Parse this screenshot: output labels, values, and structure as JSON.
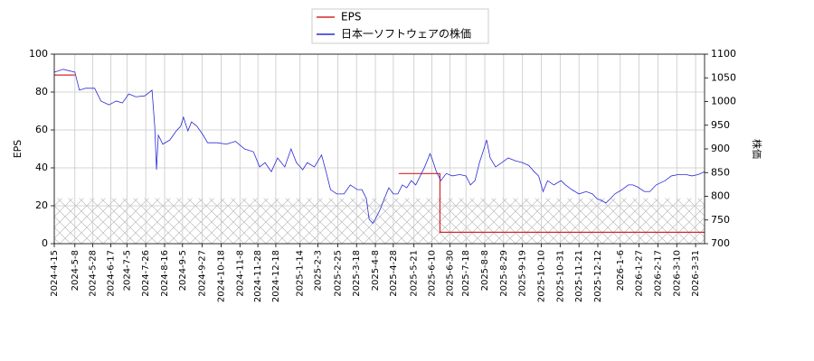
{
  "chart_data": {
    "type": "line",
    "y_label": "EPS",
    "y2_label": "株価",
    "xlim": [
      "2024-4-15",
      "2026-4-10"
    ],
    "xticks": [
      "2024-4-15",
      "2024-5-8",
      "2024-5-28",
      "2024-6-17",
      "2024-7-5",
      "2024-7-26",
      "2024-8-16",
      "2024-9-5",
      "2024-9-27",
      "2024-10-18",
      "2024-11-8",
      "2024-11-28",
      "2024-12-18",
      "2025-1-14",
      "2025-2-3",
      "2025-2-25",
      "2025-3-18",
      "2025-4-8",
      "2025-4-28",
      "2025-5-21",
      "2025-6-10",
      "2025-6-30",
      "2025-7-18",
      "2025-8-8",
      "2025-8-29",
      "2025-9-19",
      "2025-10-10",
      "2025-10-31",
      "2025-11-21",
      "2025-12-12",
      "2026-1-6",
      "2026-1-27",
      "2026-2-17",
      "2026-3-10",
      "2026-3-31"
    ],
    "ylim": [
      0,
      100
    ],
    "yticks": [
      0,
      20,
      40,
      60,
      80,
      100
    ],
    "y2lim": [
      700,
      1100
    ],
    "y2ticks": [
      700,
      750,
      800,
      850,
      900,
      950,
      1000,
      1050,
      1100
    ],
    "grid": true,
    "legend": "top",
    "shaded_range": [
      0,
      24
    ],
    "series": [
      {
        "name": "EPS",
        "color": "#d62728",
        "x": [
          "2024-4-15",
          "2024-5-8",
          "2024-5-8",
          "2025-5-4",
          "2025-6-19",
          "2025-6-19",
          "2026-4-10"
        ],
        "values": [
          89,
          89,
          null,
          37,
          37,
          6,
          6
        ]
      },
      {
        "name": "日本一ソフトウェアの株価",
        "color": "#2a2ad6",
        "axis": "y2",
        "x": [
          "2024-4-15",
          "2024-4-25",
          "2024-5-8",
          "2024-5-13",
          "2024-5-20",
          "2024-5-30",
          "2024-6-6",
          "2024-6-15",
          "2024-6-23",
          "2024-6-30",
          "2024-7-7",
          "2024-7-15",
          "2024-7-25",
          "2024-8-2",
          "2024-8-5",
          "2024-8-7",
          "2024-8-9",
          "2024-8-14",
          "2024-8-22",
          "2024-8-29",
          "2024-9-3",
          "2024-9-6",
          "2024-9-11",
          "2024-9-15",
          "2024-9-21",
          "2024-9-28",
          "2024-10-3",
          "2024-10-14",
          "2024-10-24",
          "2024-11-3",
          "2024-11-13",
          "2024-11-23",
          "2024-11-30",
          "2024-12-6",
          "2024-12-13",
          "2024-12-20",
          "2024-12-28",
          "2025-1-4",
          "2025-1-10",
          "2025-1-17",
          "2025-1-22",
          "2025-1-30",
          "2025-2-7",
          "2025-2-12",
          "2025-2-17",
          "2025-2-24",
          "2025-3-4",
          "2025-3-11",
          "2025-3-19",
          "2025-3-24",
          "2025-3-29",
          "2025-4-1",
          "2025-4-5",
          "2025-4-8",
          "2025-4-13",
          "2025-4-18",
          "2025-4-23",
          "2025-4-28",
          "2025-5-3",
          "2025-5-8",
          "2025-5-13",
          "2025-5-18",
          "2025-5-23",
          "2025-5-28",
          "2025-6-2",
          "2025-6-8",
          "2025-6-11",
          "2025-6-15",
          "2025-6-20",
          "2025-6-26",
          "2025-7-3",
          "2025-7-11",
          "2025-7-18",
          "2025-7-23",
          "2025-7-28",
          "2025-8-2",
          "2025-8-7",
          "2025-8-10",
          "2025-8-14",
          "2025-8-20",
          "2025-8-27",
          "2025-9-3",
          "2025-9-11",
          "2025-9-19",
          "2025-9-26",
          "2025-10-2",
          "2025-10-7",
          "2025-10-12",
          "2025-10-17",
          "2025-10-24",
          "2025-11-1",
          "2025-11-6",
          "2025-11-13",
          "2025-11-21",
          "2025-11-29",
          "2025-12-6",
          "2025-12-11",
          "2025-12-16",
          "2025-12-21",
          "2025-12-26",
          "2025-12-31",
          "2026-1-8",
          "2026-1-15",
          "2026-1-20",
          "2026-1-25",
          "2026-2-2",
          "2026-2-8",
          "2026-2-15",
          "2026-2-25",
          "2026-3-4",
          "2026-3-12",
          "2026-3-20",
          "2026-3-27",
          "2026-4-3",
          "2026-4-10"
        ],
        "values": [
          1062,
          1068,
          1062,
          1024,
          1028,
          1028,
          1001,
          993,
          1001,
          997,
          1016,
          1010,
          1012,
          1024,
          948,
          856,
          929,
          910,
          919,
          938,
          948,
          967,
          938,
          957,
          948,
          929,
          913,
          913,
          910,
          916,
          900,
          894,
          862,
          871,
          852,
          881,
          862,
          900,
          871,
          856,
          871,
          862,
          887,
          852,
          814,
          805,
          805,
          824,
          814,
          814,
          795,
          752,
          743,
          752,
          771,
          795,
          818,
          805,
          805,
          824,
          818,
          833,
          824,
          843,
          862,
          890,
          875,
          852,
          833,
          848,
          843,
          846,
          843,
          824,
          833,
          871,
          900,
          919,
          881,
          862,
          871,
          881,
          875,
          871,
          865,
          852,
          843,
          810,
          833,
          824,
          833,
          824,
          814,
          805,
          810,
          805,
          795,
          791,
          786,
          795,
          805,
          814,
          824,
          824,
          820,
          810,
          810,
          824,
          833,
          843,
          846,
          846,
          843,
          846,
          852
        ]
      }
    ]
  }
}
